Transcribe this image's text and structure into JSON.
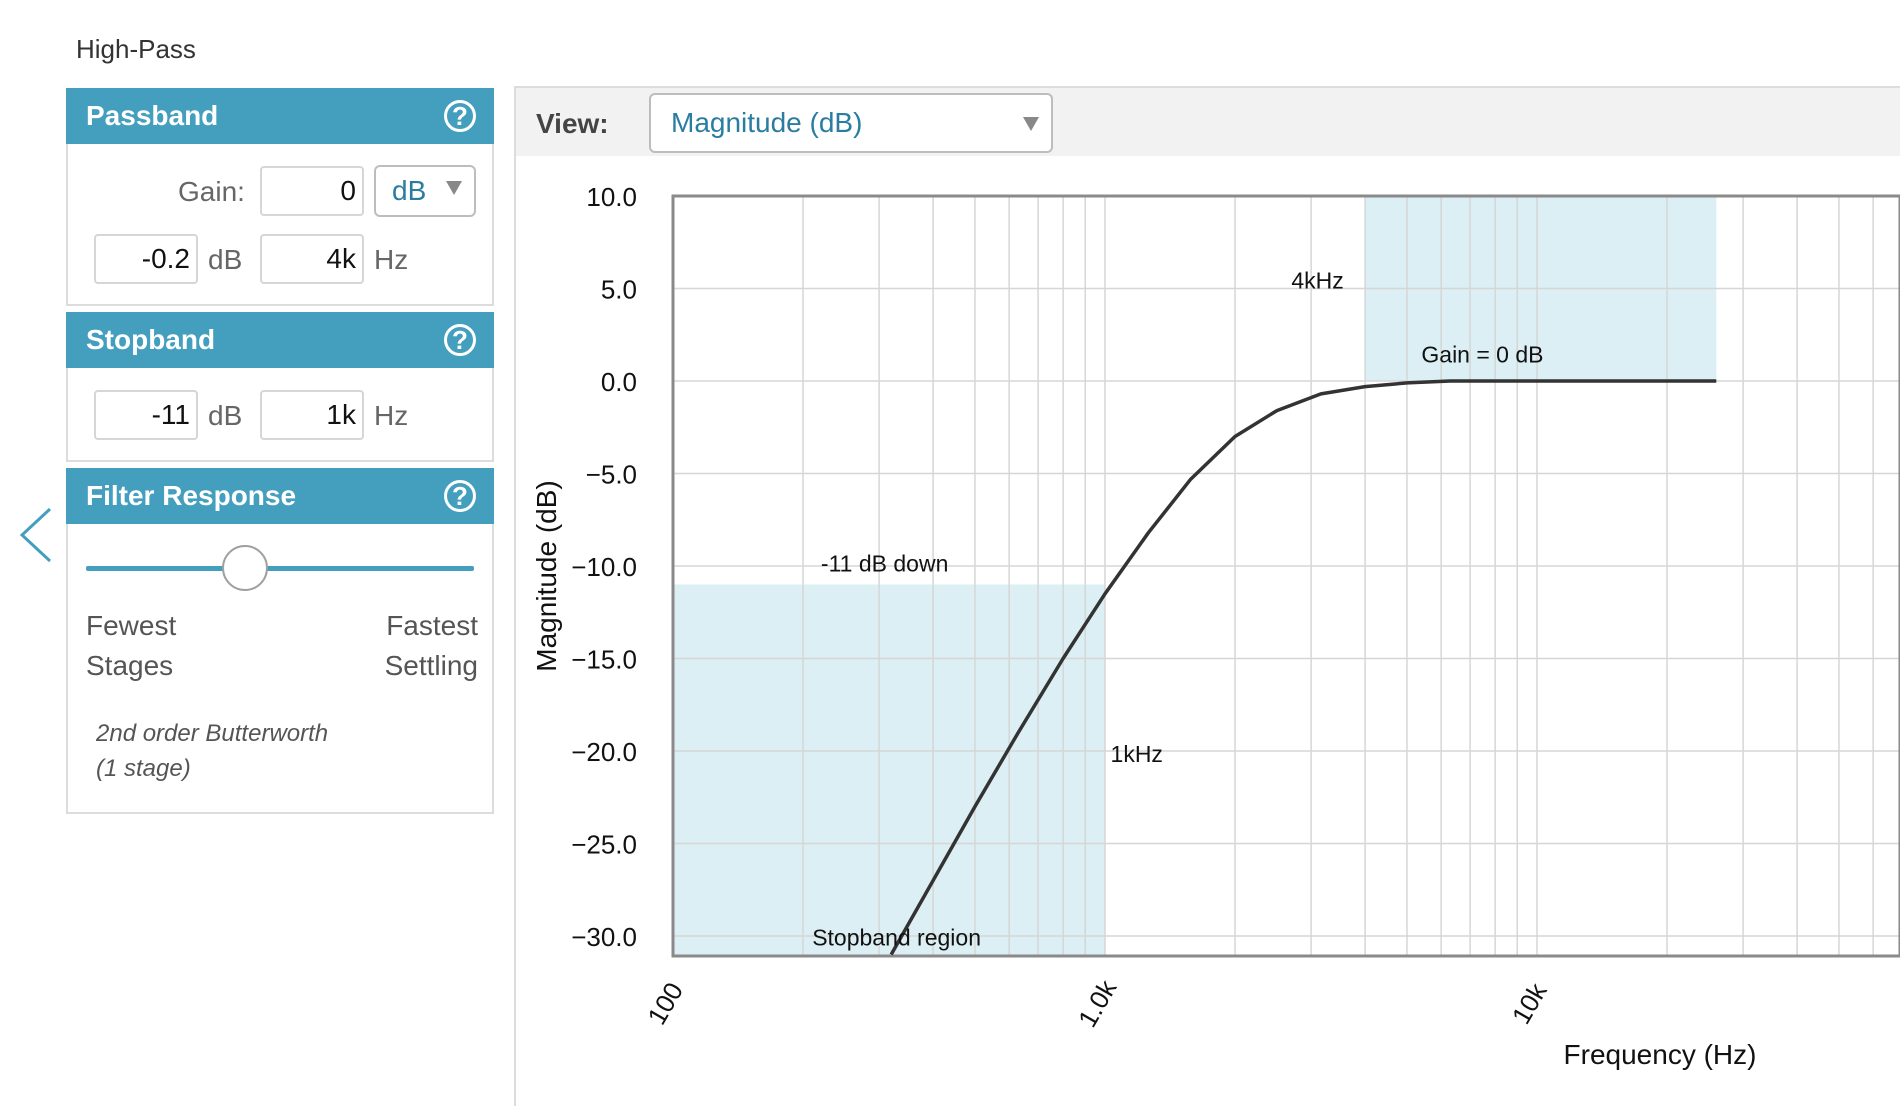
{
  "filter_type": "High-Pass",
  "passband": {
    "title": "Passband",
    "help": "?",
    "gain_label": "Gain:",
    "gain_value": "0",
    "gain_unit": "dB",
    "atten_value": "-0.2",
    "atten_unit": "dB",
    "freq_value": "4k",
    "freq_unit": "Hz"
  },
  "stopband": {
    "title": "Stopband",
    "help": "?",
    "atten_value": "-11",
    "atten_unit": "dB",
    "freq_value": "1k",
    "freq_unit": "Hz"
  },
  "filter_response": {
    "title": "Filter Response",
    "help": "?",
    "slider_left_line1": "Fewest",
    "slider_left_line2": "Stages",
    "slider_right_line1": "Fastest",
    "slider_right_line2": "Settling",
    "slider_position": 0.41,
    "description_line1": "2nd order Butterworth",
    "description_line2": "(1 stage)"
  },
  "view": {
    "label": "View:",
    "selected": "Magnitude (dB)"
  },
  "icons": {
    "back": "chevron-left-icon",
    "help": "question-circle-icon",
    "dropdown": "caret-down-icon"
  },
  "colors": {
    "accent": "#449fbf",
    "region": "#dbeff4",
    "curve": "#333333",
    "grid": "#d6d6d6"
  },
  "chart_data": {
    "type": "line",
    "xlabel": "Frequency (Hz)",
    "ylabel": "Magnitude (dB)",
    "xscale": "log",
    "xlim": [
      100,
      26000
    ],
    "ylim": [
      -31,
      10
    ],
    "xticks": [
      "100",
      "1.0k",
      "10k"
    ],
    "yticks": [
      "10.0",
      "5.0",
      "0.0",
      "−5.0",
      "−10.0",
      "−15.0",
      "−20.0",
      "−25.0",
      "−30.0"
    ],
    "ytick_values": [
      10,
      5,
      0,
      -5,
      -10,
      -15,
      -20,
      -25,
      -30
    ],
    "grid": true,
    "series": [
      {
        "x": [
          320,
          400,
          500,
          630,
          800,
          1000,
          1260,
          1580,
          2000,
          2500,
          3160,
          4000,
          5000,
          6300,
          10000,
          26000
        ],
        "values": [
          -31,
          -27,
          -23,
          -19,
          -15,
          -11.5,
          -8.2,
          -5.3,
          -3,
          -1.6,
          -0.7,
          -0.3,
          -0.1,
          0,
          0,
          0
        ]
      }
    ],
    "regions": [
      {
        "x_from": 100,
        "x_to": 1000,
        "y_from": -31,
        "y_to": -11
      },
      {
        "x_from": 4000,
        "x_to": 26000,
        "y_from": 0,
        "y_to": 10
      }
    ],
    "annotations": [
      {
        "text": "4kHz",
        "x": 2700,
        "y": 5
      },
      {
        "text": "Gain = 0 dB",
        "x": 5400,
        "y": 1
      },
      {
        "text": "-11 dB down",
        "x": 220,
        "y": -10.3
      },
      {
        "text": "1kHz",
        "x": 1030,
        "y": -20.6
      },
      {
        "text": "Stopband region",
        "x": 210,
        "y": -30.5
      }
    ]
  }
}
